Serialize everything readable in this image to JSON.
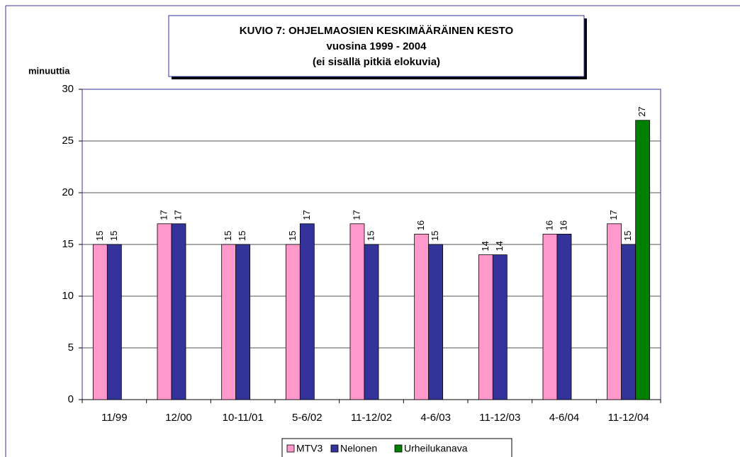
{
  "chart_data": {
    "type": "bar",
    "title": [
      "KUVIO 7: OHJELMAOSIEN KESKIMÄÄRÄINEN KESTO",
      "vuosina 1999 - 2004",
      "(ei sisällä pitkiä elokuvia)"
    ],
    "y_label": "minuuttia",
    "categories": [
      "11/99",
      "12/00",
      "10-11/01",
      "5-6/02",
      "11-12/02",
      "4-6/03",
      "11-12/03",
      "4-6/04",
      "11-12/04"
    ],
    "series": [
      {
        "name": "MTV3",
        "color": "#ff99cc",
        "values": [
          15,
          17,
          15,
          15,
          17,
          16,
          14,
          16,
          17
        ]
      },
      {
        "name": "Nelonen",
        "color": "#333399",
        "values": [
          15,
          17,
          15,
          17,
          15,
          15,
          14,
          16,
          15
        ]
      },
      {
        "name": "Urheilukanava",
        "color": "#008000",
        "values": [
          null,
          null,
          null,
          null,
          null,
          null,
          null,
          null,
          27
        ]
      }
    ],
    "ylim": [
      0,
      30
    ],
    "yticks": [
      0,
      5,
      10,
      15,
      20,
      25,
      30
    ],
    "grid": true,
    "legend": "bottom"
  }
}
